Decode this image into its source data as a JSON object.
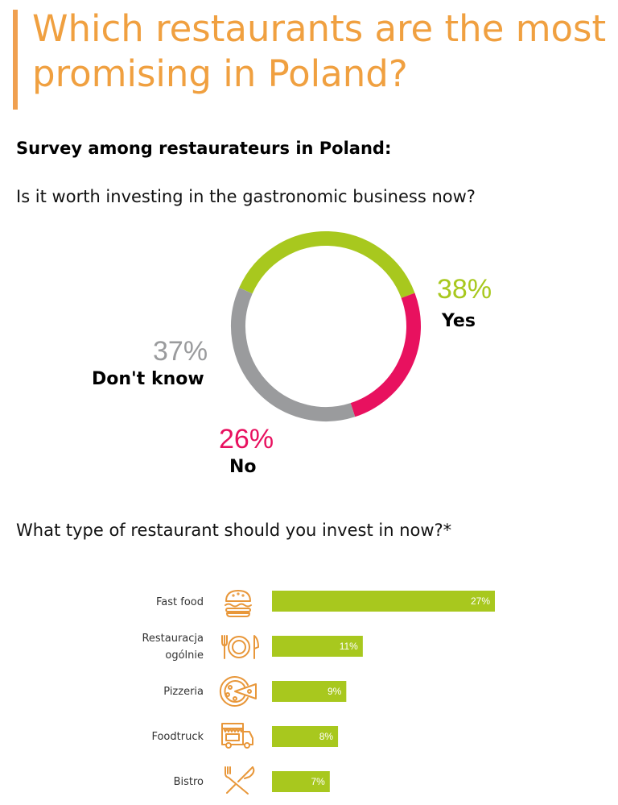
{
  "title": "Which restaurants are the most promising in Poland?",
  "subtitle": "Survey among restaurateurs in Poland:",
  "question1": "Is it worth investing in the gastronomic business now?",
  "question2": "What type of restaurant should you invest in now?*",
  "colors": {
    "title": "#f0a040",
    "yes": "#a8c81e",
    "no": "#e8115f",
    "dont_know": "#9a9b9d",
    "bar": "#a8c81e",
    "icon": "#e8973a"
  },
  "icons": [
    "burger-icon",
    "plate-cutlery-icon",
    "pizza-icon",
    "foodtruck-icon",
    "crossed-cutlery-icon"
  ],
  "chart_data": [
    {
      "type": "pie",
      "title": "Is it worth investing in the gastronomic business now?",
      "categories": [
        "Yes",
        "No",
        "Don't know"
      ],
      "values": [
        38,
        26,
        37
      ],
      "value_labels": [
        "38%",
        "26%",
        "37%"
      ],
      "colors": [
        "#a8c81e",
        "#e8115f",
        "#9a9b9d"
      ],
      "donut": true
    },
    {
      "type": "bar",
      "orientation": "horizontal",
      "title": "What type of restaurant should you invest in now?*",
      "categories": [
        "Fast food",
        "Restauracja ogólnie",
        "Pizzeria",
        "Foodtruck",
        "Bistro"
      ],
      "category_lines": [
        [
          "Fast food"
        ],
        [
          "Restauracja",
          "ogólnie"
        ],
        [
          "Pizzeria"
        ],
        [
          "Foodtruck"
        ],
        [
          "Bistro"
        ]
      ],
      "values": [
        27,
        11,
        9,
        8,
        7
      ],
      "value_labels": [
        "27%",
        "11%",
        "9%",
        "8%",
        "7%"
      ],
      "xlim": [
        0,
        27
      ],
      "color": "#a8c81e"
    }
  ]
}
